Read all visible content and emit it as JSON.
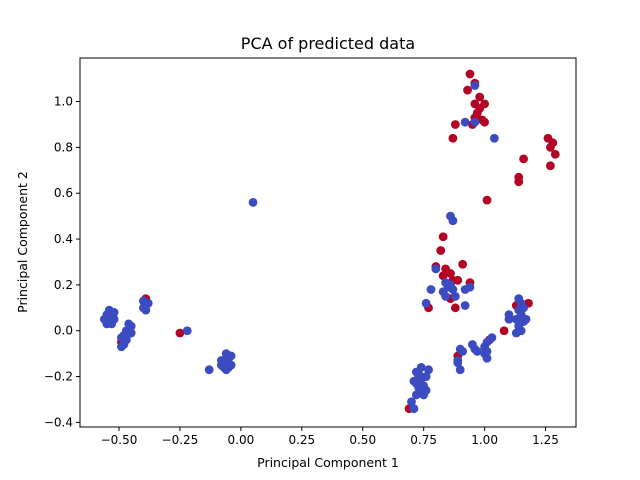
{
  "chart_data": {
    "type": "scatter",
    "title": "PCA of predicted data",
    "xlabel": "Principal Component 1",
    "ylabel": "Principal Component 2",
    "xlim": [
      -0.66,
      1.375
    ],
    "ylim": [
      -0.42,
      1.19
    ],
    "xticks": [
      "-0.50",
      "-0.25",
      "0.00",
      "0.25",
      "0.50",
      "0.75",
      "1.00",
      "1.25"
    ],
    "yticks": [
      "-0.4",
      "-0.2",
      "0.0",
      "0.2",
      "0.4",
      "0.6",
      "0.8",
      "1.0"
    ],
    "colors": {
      "class_blue": "#3b4cc0",
      "class_red": "#b40426"
    },
    "series": [
      {
        "color": "#b40426",
        "points": [
          [
            0.94,
            1.12
          ],
          [
            0.96,
            1.08
          ],
          [
            0.93,
            1.05
          ],
          [
            0.98,
            1.02
          ],
          [
            0.96,
            0.99
          ],
          [
            0.98,
            0.97
          ],
          [
            1.0,
            0.99
          ],
          [
            0.97,
            0.95
          ],
          [
            0.99,
            0.92
          ],
          [
            1.0,
            0.91
          ],
          [
            0.95,
            0.9
          ],
          [
            0.96,
            0.93
          ],
          [
            0.88,
            0.9
          ],
          [
            0.87,
            0.84
          ],
          [
            1.26,
            0.84
          ],
          [
            1.28,
            0.82
          ],
          [
            1.27,
            0.8
          ],
          [
            1.29,
            0.77
          ],
          [
            1.16,
            0.75
          ],
          [
            1.27,
            0.72
          ],
          [
            1.14,
            0.67
          ],
          [
            1.14,
            0.65
          ],
          [
            1.01,
            0.57
          ],
          [
            0.83,
            0.41
          ],
          [
            0.82,
            0.35
          ],
          [
            0.8,
            0.28
          ],
          [
            0.84,
            0.27
          ],
          [
            0.86,
            0.25
          ],
          [
            0.83,
            0.24
          ],
          [
            0.87,
            0.22
          ],
          [
            0.91,
            0.29
          ],
          [
            0.89,
            0.22
          ],
          [
            0.94,
            0.21
          ],
          [
            0.86,
            0.14
          ],
          [
            0.88,
            0.1
          ],
          [
            0.77,
            0.1
          ],
          [
            1.13,
            0.11
          ],
          [
            1.18,
            0.12
          ],
          [
            1.08,
            0.0
          ],
          [
            1.02,
            -0.04
          ],
          [
            0.89,
            -0.11
          ],
          [
            -0.39,
            0.14
          ],
          [
            -0.25,
            -0.01
          ],
          [
            -0.49,
            -0.05
          ],
          [
            0.69,
            -0.34
          ]
        ]
      },
      {
        "color": "#3b4cc0",
        "points": [
          [
            0.92,
            0.91
          ],
          [
            0.96,
            0.91
          ],
          [
            0.96,
            1.07
          ],
          [
            1.04,
            0.84
          ],
          [
            0.05,
            0.56
          ],
          [
            0.86,
            0.5
          ],
          [
            0.87,
            0.48
          ],
          [
            0.8,
            0.27
          ],
          [
            0.84,
            0.21
          ],
          [
            0.85,
            0.19
          ],
          [
            0.86,
            0.2
          ],
          [
            0.87,
            0.18
          ],
          [
            0.83,
            0.17
          ],
          [
            0.84,
            0.15
          ],
          [
            0.88,
            0.15
          ],
          [
            0.92,
            0.11
          ],
          [
            0.76,
            0.12
          ],
          [
            0.78,
            0.18
          ],
          [
            0.92,
            0.18
          ],
          [
            0.94,
            0.19
          ],
          [
            -0.54,
            0.09
          ],
          [
            -0.55,
            0.07
          ],
          [
            -0.53,
            0.06
          ],
          [
            -0.56,
            0.05
          ],
          [
            -0.54,
            0.04
          ],
          [
            -0.52,
            0.05
          ],
          [
            -0.55,
            0.03
          ],
          [
            -0.53,
            0.03
          ],
          [
            -0.52,
            0.08
          ],
          [
            -0.4,
            0.13
          ],
          [
            -0.39,
            0.11
          ],
          [
            -0.4,
            0.1
          ],
          [
            -0.39,
            0.09
          ],
          [
            -0.38,
            0.12
          ],
          [
            -0.46,
            0.03
          ],
          [
            -0.45,
            0.02
          ],
          [
            -0.47,
            0.0
          ],
          [
            -0.46,
            -0.01
          ],
          [
            -0.48,
            -0.02
          ],
          [
            -0.49,
            -0.03
          ],
          [
            -0.47,
            -0.03
          ],
          [
            -0.48,
            -0.06
          ],
          [
            -0.49,
            -0.07
          ],
          [
            -0.47,
            -0.04
          ],
          [
            -0.45,
            -0.01
          ],
          [
            -0.22,
            0.0
          ],
          [
            -0.13,
            -0.17
          ],
          [
            -0.06,
            -0.1
          ],
          [
            -0.04,
            -0.11
          ],
          [
            -0.05,
            -0.12
          ],
          [
            -0.07,
            -0.13
          ],
          [
            -0.06,
            -0.14
          ],
          [
            -0.08,
            -0.15
          ],
          [
            -0.07,
            -0.16
          ],
          [
            -0.05,
            -0.16
          ],
          [
            -0.06,
            -0.17
          ],
          [
            -0.04,
            -0.15
          ],
          [
            -0.08,
            -0.13
          ],
          [
            0.72,
            -0.18
          ],
          [
            0.73,
            -0.19
          ],
          [
            0.74,
            -0.21
          ],
          [
            0.72,
            -0.23
          ],
          [
            0.75,
            -0.24
          ],
          [
            0.73,
            -0.25
          ],
          [
            0.71,
            -0.22
          ],
          [
            0.76,
            -0.2
          ],
          [
            0.74,
            -0.27
          ],
          [
            0.72,
            -0.28
          ],
          [
            0.75,
            -0.28
          ],
          [
            0.76,
            -0.26
          ],
          [
            0.73,
            -0.2
          ],
          [
            0.77,
            -0.17
          ],
          [
            0.7,
            -0.31
          ],
          [
            0.71,
            -0.34
          ],
          [
            0.74,
            -0.16
          ],
          [
            0.89,
            -0.13
          ],
          [
            0.9,
            -0.08
          ],
          [
            0.91,
            -0.09
          ],
          [
            0.89,
            -0.14
          ],
          [
            0.9,
            -0.17
          ],
          [
            0.95,
            -0.06
          ],
          [
            0.96,
            -0.08
          ],
          [
            0.97,
            -0.09
          ],
          [
            1.01,
            -0.05
          ],
          [
            1.0,
            -0.07
          ],
          [
            1.01,
            -0.09
          ],
          [
            1.0,
            -0.1
          ],
          [
            1.01,
            -0.12
          ],
          [
            1.03,
            -0.03
          ],
          [
            1.1,
            0.07
          ],
          [
            1.1,
            0.05
          ],
          [
            1.14,
            0.14
          ],
          [
            1.15,
            0.12
          ],
          [
            1.16,
            0.1
          ],
          [
            1.14,
            0.09
          ],
          [
            1.15,
            0.07
          ],
          [
            1.13,
            0.05
          ],
          [
            1.16,
            0.04
          ],
          [
            1.14,
            0.02
          ],
          [
            1.15,
            0.0
          ],
          [
            1.17,
            0.05
          ],
          [
            1.13,
            -0.01
          ]
        ]
      }
    ]
  }
}
